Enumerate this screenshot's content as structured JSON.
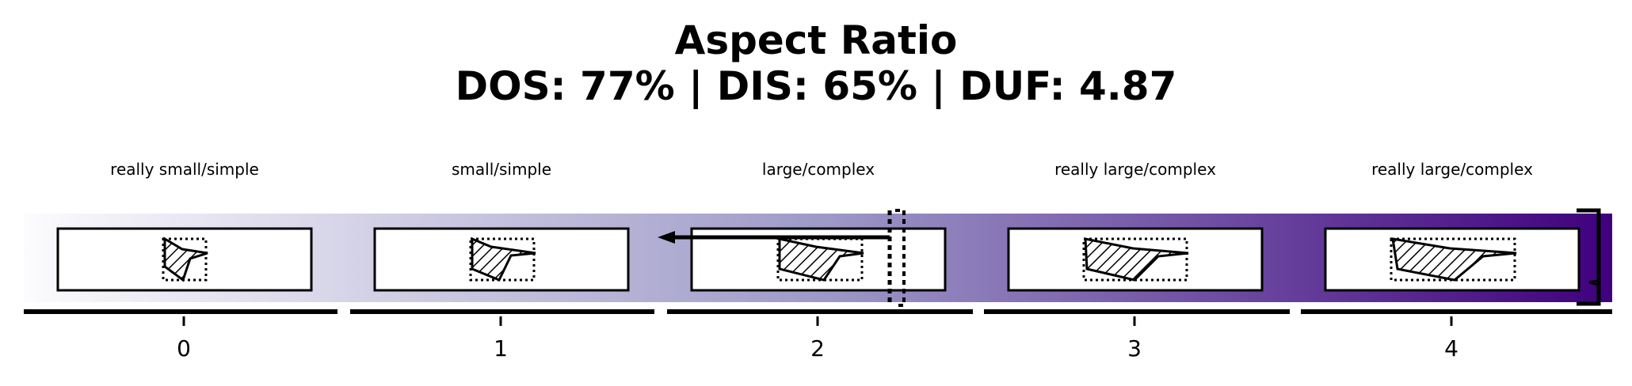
{
  "title": "Aspect Ratio",
  "subtitle": "DOS: 77% | DIS: 65% | DUF: 4.87",
  "categories": [
    {
      "label": "really small/simple",
      "index": "0"
    },
    {
      "label": "small/simple",
      "index": "1"
    },
    {
      "label": "large/complex",
      "index": "2"
    },
    {
      "label": "really large/complex",
      "index": "3"
    },
    {
      "label": "really large/complex",
      "index": "4"
    }
  ],
  "colors": {
    "gradient_start": "#fcfbfd",
    "gradient_mid": "#9e9ac8",
    "gradient_end": "#3f007d"
  }
}
